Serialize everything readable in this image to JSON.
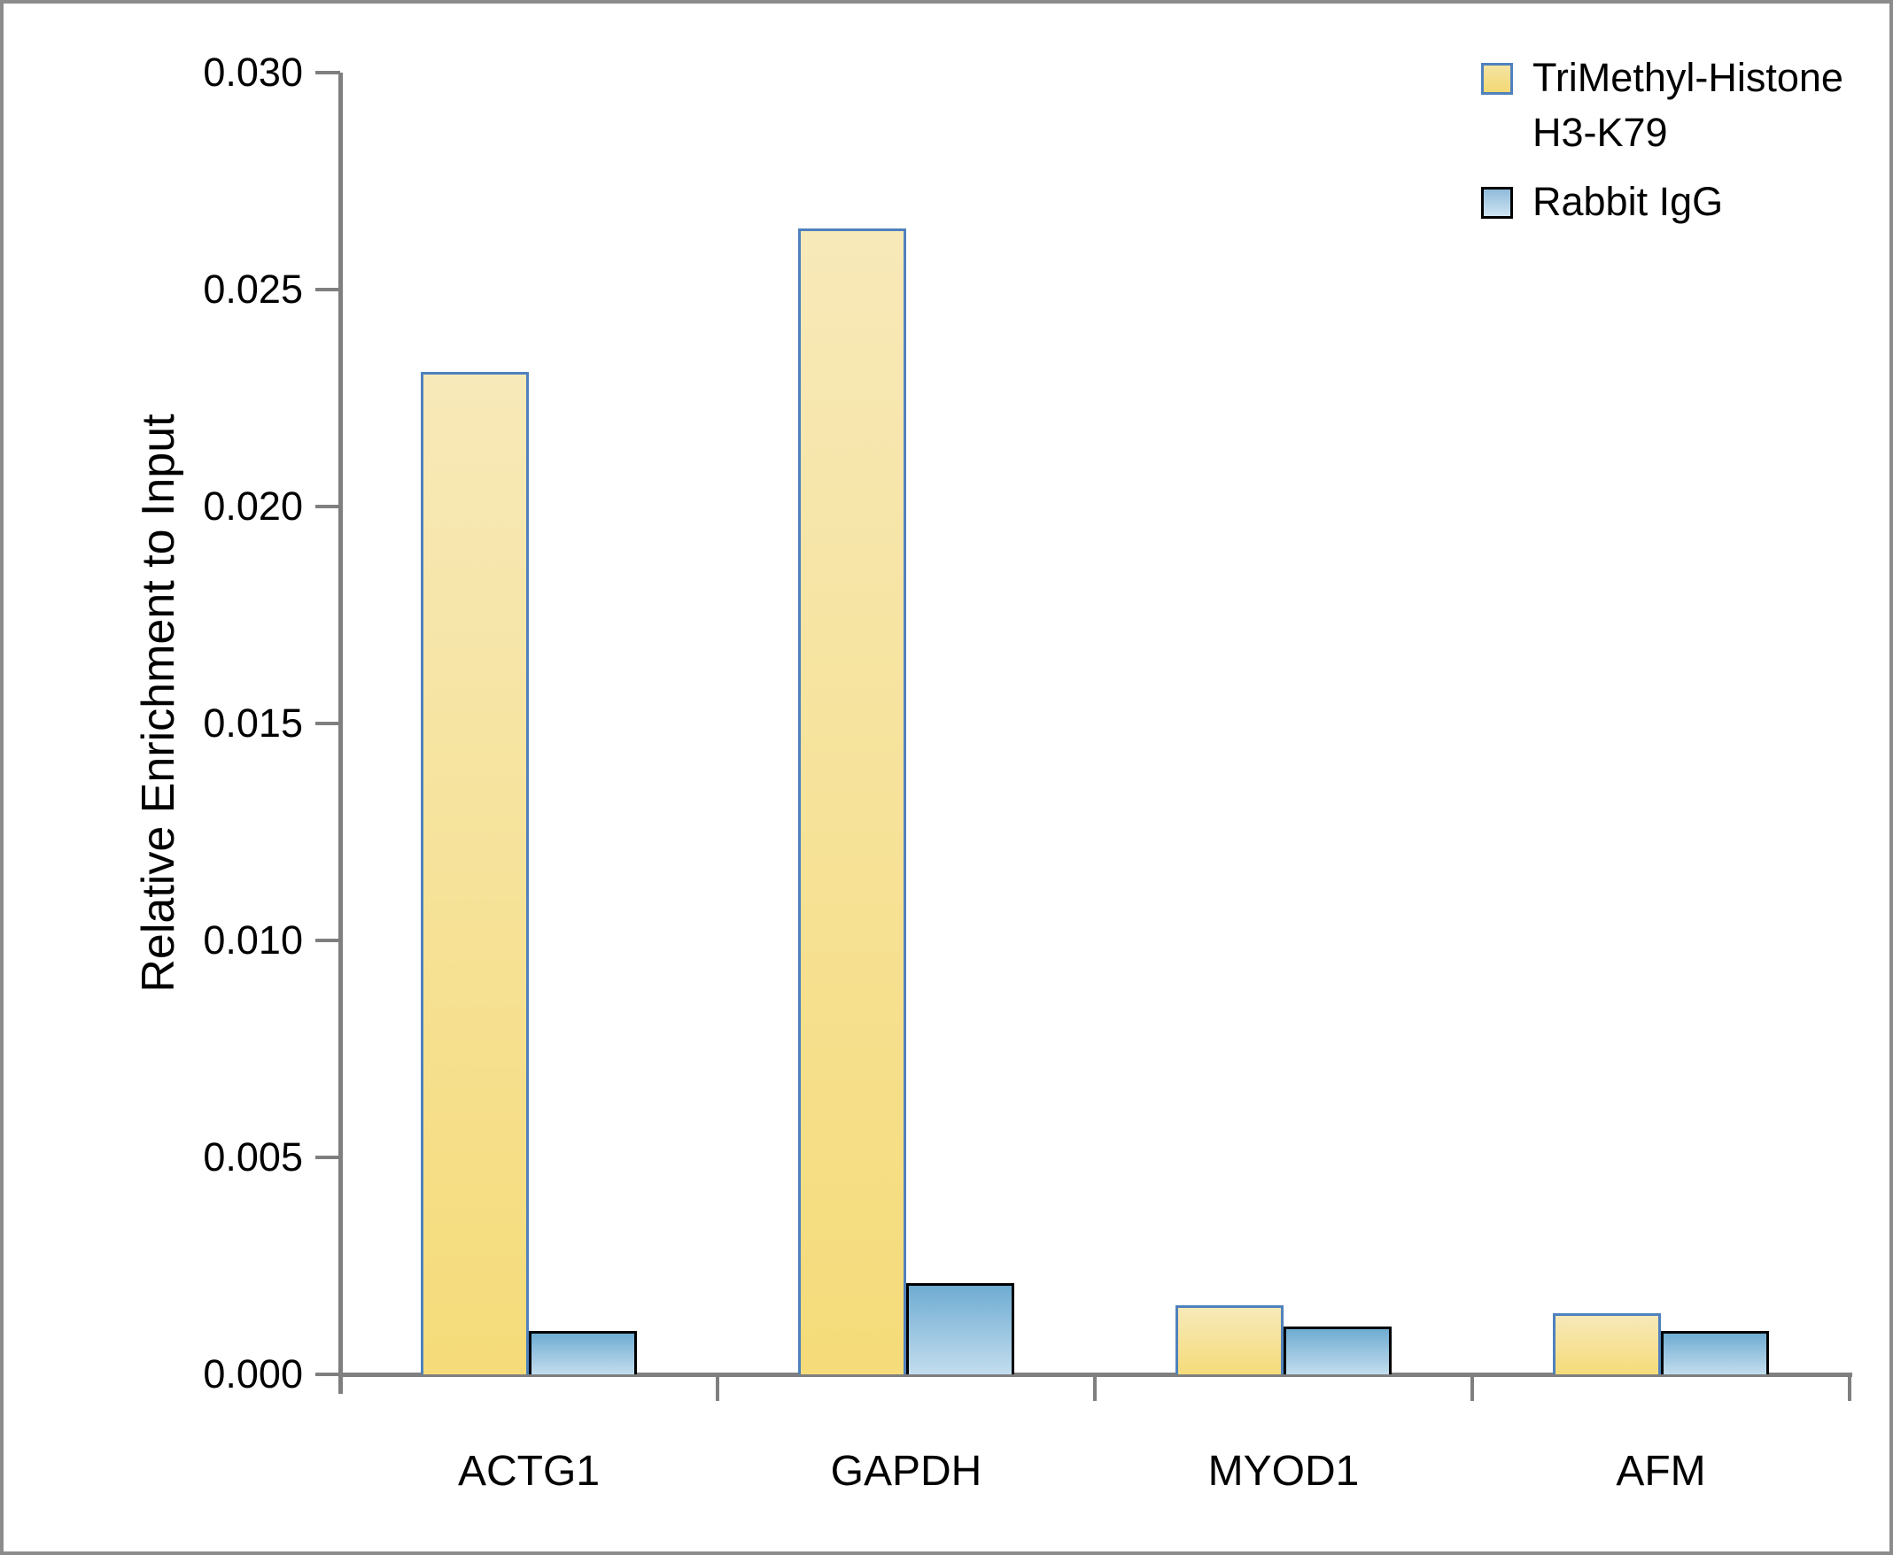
{
  "figure": {
    "background_color": "#ffffff",
    "frame_color": "#8c8c8c",
    "axis_color": "#7f7f7f",
    "text_color": "#000000"
  },
  "chart_data": {
    "type": "bar",
    "title": "",
    "xlabel": "",
    "ylabel": "Relative Enrichment to Input",
    "categories": [
      "ACTG1",
      "GAPDH",
      "MYOD1",
      "AFM"
    ],
    "series": [
      {
        "name": "TriMethyl-Histone H3-K79",
        "values": [
          0.0231,
          0.0264,
          0.0016,
          0.0014
        ],
        "fill_top": "#f7e9b9",
        "fill_bottom": "#f5db79",
        "border": "#4f81bd"
      },
      {
        "name": "Rabbit IgG",
        "values": [
          0.001,
          0.0021,
          0.0011,
          0.001
        ],
        "fill_top": "#6facd2",
        "fill_bottom": "#c3ddee",
        "border": "#000000"
      }
    ],
    "ylim": [
      0,
      0.03
    ],
    "ytick_step": 0.005,
    "ytick_labels": [
      "0.000",
      "0.005",
      "0.010",
      "0.015",
      "0.020",
      "0.025",
      "0.030"
    ],
    "grid": false,
    "legend_position": "top-right"
  }
}
